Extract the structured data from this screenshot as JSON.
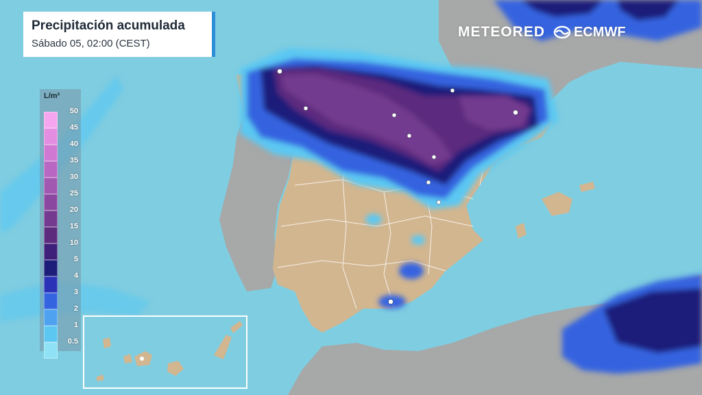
{
  "header": {
    "title": "Precipitación acumulada",
    "subtitle": "Sábado 05, 02:00 (CEST)"
  },
  "logos": {
    "meteored": "METEORED",
    "ecmwf": "ECMWF"
  },
  "legend": {
    "unit": "L/m²",
    "levels": [
      {
        "label": "50",
        "color": "#f6a6ee"
      },
      {
        "label": "45",
        "color": "#e48ee2"
      },
      {
        "label": "40",
        "color": "#cf79d2"
      },
      {
        "label": "35",
        "color": "#b868c2"
      },
      {
        "label": "30",
        "color": "#a058b1"
      },
      {
        "label": "25",
        "color": "#8b48a0"
      },
      {
        "label": "20",
        "color": "#733a8f"
      },
      {
        "label": "15",
        "color": "#5c2b7e"
      },
      {
        "label": "10",
        "color": "#3e1f79"
      },
      {
        "label": "5",
        "color": "#1c1e7a"
      },
      {
        "label": "4",
        "color": "#2a33b8"
      },
      {
        "label": "3",
        "color": "#3564e0"
      },
      {
        "label": "2",
        "color": "#4ea2f0"
      },
      {
        "label": "1",
        "color": "#5cc8f2"
      },
      {
        "label": "0.5",
        "color": "#8fe2f6"
      }
    ]
  },
  "colors": {
    "sea": "#7fcde0",
    "land_spain": "#d2b690",
    "land_other": "#a7a8a8",
    "accent": "#2e8fd8"
  }
}
